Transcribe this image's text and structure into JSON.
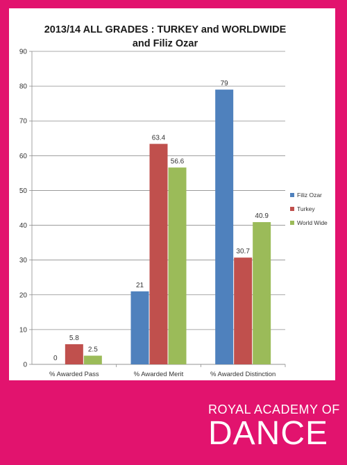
{
  "chart_data": {
    "type": "bar",
    "title_lines": [
      "2013/14 ALL GRADES : TURKEY and WORLDWIDE",
      "and Filiz Ozar"
    ],
    "categories": [
      "% Awarded Pass",
      "% Awarded Merit",
      "% Awarded Distinction"
    ],
    "series": [
      {
        "name": "Filiz Ozar",
        "color": "#4F81BD",
        "values": [
          0,
          21,
          79
        ]
      },
      {
        "name": "Turkey",
        "color": "#C0504D",
        "values": [
          5.8,
          63.4,
          30.7
        ]
      },
      {
        "name": "World Wide",
        "color": "#9BBB59",
        "values": [
          2.5,
          56.6,
          40.9
        ]
      }
    ],
    "y_ticks": [
      0,
      10,
      20,
      30,
      40,
      50,
      60,
      70,
      80,
      90
    ],
    "ylim": [
      0,
      90
    ],
    "grid": true,
    "legend_position": "right"
  },
  "branding": {
    "line1": "ROYAL ACADEMY OF",
    "line2": "DANCE"
  },
  "colors": {
    "background": "#E2136E"
  }
}
